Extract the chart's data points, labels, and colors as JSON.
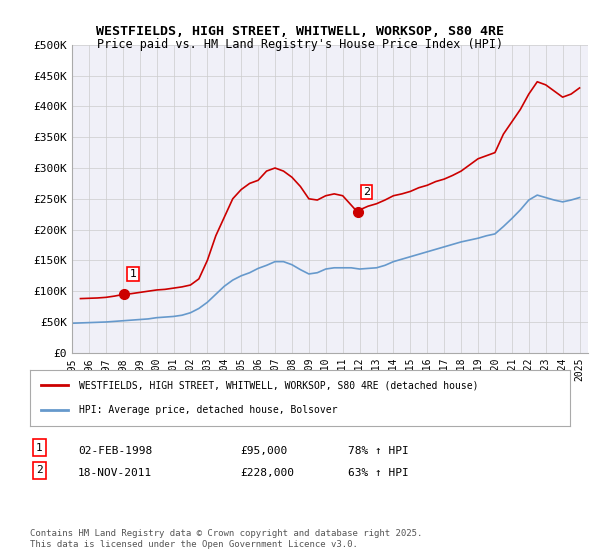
{
  "title_line1": "WESTFIELDS, HIGH STREET, WHITWELL, WORKSOP, S80 4RE",
  "title_line2": "Price paid vs. HM Land Registry's House Price Index (HPI)",
  "ylabel": "",
  "xlabel": "",
  "background_color": "#ffffff",
  "grid_color": "#cccccc",
  "plot_bg_color": "#f0f0f8",
  "red_line_color": "#cc0000",
  "blue_line_color": "#6699cc",
  "ylim": [
    0,
    500000
  ],
  "yticks": [
    0,
    50000,
    100000,
    150000,
    200000,
    250000,
    300000,
    350000,
    400000,
    450000,
    500000
  ],
  "ytick_labels": [
    "£0",
    "£50K",
    "£100K",
    "£150K",
    "£200K",
    "£250K",
    "£300K",
    "£350K",
    "£400K",
    "£450K",
    "£500K"
  ],
  "xlim_start": 1995.0,
  "xlim_end": 2025.5,
  "xtick_years": [
    1995,
    1996,
    1997,
    1998,
    1999,
    2000,
    2001,
    2002,
    2003,
    2004,
    2005,
    2006,
    2007,
    2008,
    2009,
    2010,
    2011,
    2012,
    2013,
    2014,
    2015,
    2016,
    2017,
    2018,
    2019,
    2020,
    2021,
    2022,
    2023,
    2024,
    2025
  ],
  "sale1_x": 1998.09,
  "sale1_y": 95000,
  "sale1_label": "1",
  "sale2_x": 2011.89,
  "sale2_y": 228000,
  "sale2_label": "2",
  "legend_red_label": "WESTFIELDS, HIGH STREET, WHITWELL, WORKSOP, S80 4RE (detached house)",
  "legend_blue_label": "HPI: Average price, detached house, Bolsover",
  "table_row1": "1    02-FEB-1998              £95,000         78% ↑ HPI",
  "table_row2": "2    18-NOV-2011              £228,000       63% ↑ HPI",
  "footnote": "Contains HM Land Registry data © Crown copyright and database right 2025.\nThis data is licensed under the Open Government Licence v3.0.",
  "red_hpi_data": {
    "years": [
      1995.5,
      1996.0,
      1996.5,
      1997.0,
      1997.5,
      1998.09,
      1998.5,
      1999.0,
      1999.5,
      2000.0,
      2000.5,
      2001.0,
      2001.5,
      2002.0,
      2002.5,
      2003.0,
      2003.5,
      2004.0,
      2004.5,
      2005.0,
      2005.5,
      2006.0,
      2006.5,
      2007.0,
      2007.5,
      2008.0,
      2008.5,
      2009.0,
      2009.5,
      2010.0,
      2010.5,
      2011.0,
      2011.89,
      2012.0,
      2012.5,
      2013.0,
      2013.5,
      2014.0,
      2014.5,
      2015.0,
      2015.5,
      2016.0,
      2016.5,
      2017.0,
      2017.5,
      2018.0,
      2018.5,
      2019.0,
      2019.5,
      2020.0,
      2020.5,
      2021.0,
      2021.5,
      2022.0,
      2022.5,
      2023.0,
      2023.5,
      2024.0,
      2024.5,
      2025.0
    ],
    "values": [
      88000,
      88500,
      89000,
      90000,
      92000,
      95000,
      96000,
      98000,
      100000,
      102000,
      103000,
      105000,
      107000,
      110000,
      120000,
      150000,
      190000,
      220000,
      250000,
      265000,
      275000,
      280000,
      295000,
      300000,
      295000,
      285000,
      270000,
      250000,
      248000,
      255000,
      258000,
      255000,
      228000,
      232000,
      238000,
      242000,
      248000,
      255000,
      258000,
      262000,
      268000,
      272000,
      278000,
      282000,
      288000,
      295000,
      305000,
      315000,
      320000,
      325000,
      355000,
      375000,
      395000,
      420000,
      440000,
      435000,
      425000,
      415000,
      420000,
      430000
    ]
  },
  "blue_hpi_data": {
    "years": [
      1995.0,
      1995.5,
      1996.0,
      1996.5,
      1997.0,
      1997.5,
      1998.0,
      1998.5,
      1999.0,
      1999.5,
      2000.0,
      2000.5,
      2001.0,
      2001.5,
      2002.0,
      2002.5,
      2003.0,
      2003.5,
      2004.0,
      2004.5,
      2005.0,
      2005.5,
      2006.0,
      2006.5,
      2007.0,
      2007.5,
      2008.0,
      2008.5,
      2009.0,
      2009.5,
      2010.0,
      2010.5,
      2011.0,
      2011.5,
      2012.0,
      2012.5,
      2013.0,
      2013.5,
      2014.0,
      2014.5,
      2015.0,
      2015.5,
      2016.0,
      2016.5,
      2017.0,
      2017.5,
      2018.0,
      2018.5,
      2019.0,
      2019.5,
      2020.0,
      2020.5,
      2021.0,
      2021.5,
      2022.0,
      2022.5,
      2023.0,
      2023.5,
      2024.0,
      2024.5,
      2025.0
    ],
    "values": [
      48000,
      48500,
      49000,
      49500,
      50000,
      51000,
      52000,
      53000,
      54000,
      55000,
      57000,
      58000,
      59000,
      61000,
      65000,
      72000,
      82000,
      95000,
      108000,
      118000,
      125000,
      130000,
      137000,
      142000,
      148000,
      148000,
      143000,
      135000,
      128000,
      130000,
      136000,
      138000,
      138000,
      138000,
      136000,
      137000,
      138000,
      142000,
      148000,
      152000,
      156000,
      160000,
      164000,
      168000,
      172000,
      176000,
      180000,
      183000,
      186000,
      190000,
      193000,
      205000,
      218000,
      232000,
      248000,
      256000,
      252000,
      248000,
      245000,
      248000,
      252000
    ]
  }
}
